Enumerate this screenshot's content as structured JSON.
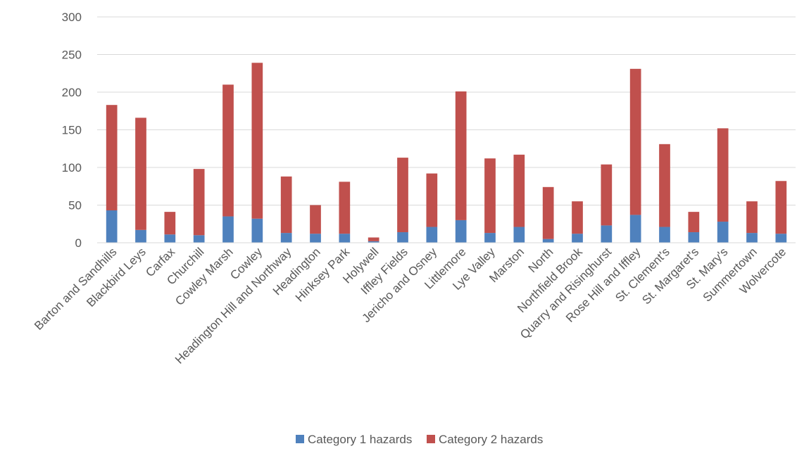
{
  "chart_data": {
    "type": "bar",
    "stacked": true,
    "title": "",
    "xlabel": "",
    "ylabel": "",
    "ylim": [
      0,
      300
    ],
    "yticks": [
      0,
      50,
      100,
      150,
      200,
      250,
      300
    ],
    "grid": true,
    "legend_position": "bottom",
    "categories": [
      "Barton and Sandhills",
      "Blackbird Leys",
      "Carfax",
      "Churchill",
      "Cowley Marsh",
      "Cowley",
      "Headington Hill and Northway",
      "Headington",
      "Hinksey Park",
      "Holywell",
      "Iffley Fields",
      "Jericho and Osney",
      "Littlemore",
      "Lye Valley",
      "Marston",
      "North",
      "Northfield Brook",
      "Quarry and Risinghurst",
      "Rose Hill and Iffley",
      "St. Clement's",
      "St. Margaret's",
      "St. Mary's",
      "Summertown",
      "Wolvercote"
    ],
    "series": [
      {
        "name": "Category 1 hazards",
        "color": "#4f81bd",
        "values": [
          43,
          17,
          11,
          10,
          35,
          32,
          13,
          12,
          12,
          2,
          14,
          21,
          30,
          13,
          21,
          5,
          12,
          23,
          37,
          21,
          14,
          28,
          13,
          12
        ]
      },
      {
        "name": "Category 2 hazards",
        "color": "#c0504d",
        "values": [
          140,
          149,
          30,
          88,
          175,
          207,
          75,
          38,
          69,
          5,
          99,
          71,
          171,
          99,
          96,
          69,
          43,
          81,
          194,
          110,
          27,
          124,
          42,
          70
        ]
      }
    ]
  }
}
